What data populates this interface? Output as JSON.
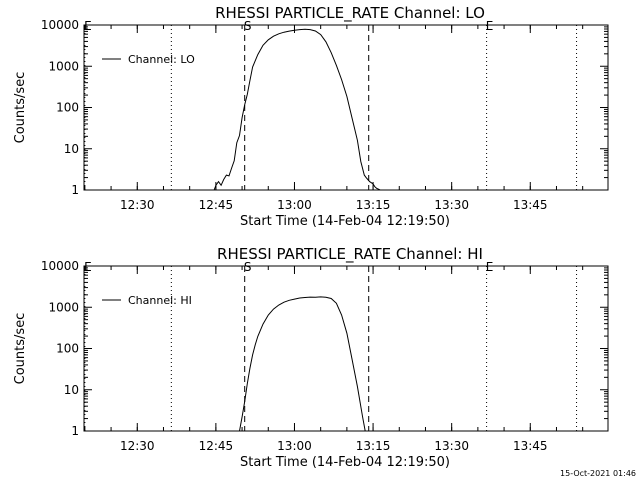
{
  "chart_data": [
    {
      "type": "line",
      "title": "RHESSI PARTICLE_RATE Channel: LO",
      "xlabel": "Start Time (14-Feb-04 12:19:50)",
      "ylabel": "Counts/sec",
      "y_scale": "log",
      "ylim": [
        1,
        10000
      ],
      "xlim": [
        "12:19:50",
        "13:59:50"
      ],
      "x_ticks": [
        "12:30",
        "12:45",
        "13:00",
        "13:15",
        "13:30",
        "13:45"
      ],
      "y_ticks": [
        "1",
        "10",
        "100",
        "1000",
        "10000"
      ],
      "legend_position": "top-left",
      "markers": {
        "start_label": "S",
        "end_label": "E",
        "start_time": "12:50:30",
        "end_time": "13:14:10",
        "dotted_lines": [
          "12:20:00",
          "12:36:30",
          "13:36:40",
          "13:53:50"
        ],
        "letter_E_near": [
          "12:20:00",
          "13:36:40"
        ]
      },
      "series": [
        {
          "name": "Channel: LO",
          "x": [
            "12:44:40",
            "12:45:00",
            "12:45:30",
            "12:46:00",
            "12:46:30",
            "12:47:00",
            "12:47:30",
            "12:48:00",
            "12:48:30",
            "12:49:00",
            "12:49:30",
            "12:50:00",
            "12:50:30",
            "12:51:00",
            "12:51:30",
            "12:52:00",
            "12:53:00",
            "12:54:00",
            "12:55:00",
            "12:56:00",
            "12:57:00",
            "12:58:00",
            "12:59:00",
            "13:00:00",
            "13:01:00",
            "13:02:00",
            "13:03:00",
            "13:04:00",
            "13:05:00",
            "13:06:00",
            "13:07:00",
            "13:08:00",
            "13:09:00",
            "13:10:00",
            "13:11:00",
            "13:12:00",
            "13:12:40",
            "13:13:20",
            "13:13:40",
            "13:14:00",
            "13:14:20",
            "13:14:40",
            "13:15:00",
            "13:15:20",
            "13:15:40",
            "13:16:00",
            "13:16:20"
          ],
          "y": [
            1.0,
            1.3,
            1.6,
            1.3,
            1.8,
            2.3,
            2.2,
            3.4,
            5.1,
            14,
            21,
            57,
            117,
            208,
            447,
            960,
            1912,
            3218,
            4387,
            5346,
            6115,
            6685,
            7107,
            7439,
            7750,
            7863,
            7728,
            7154,
            5851,
            3917,
            2128,
            1049,
            474,
            185,
            55,
            16,
            4.9,
            2.3,
            2.0,
            1.8,
            1.6,
            1.5,
            1.4,
            1.2,
            1.1,
            1.05,
            1.0
          ]
        }
      ]
    },
    {
      "type": "line",
      "title": "RHESSI PARTICLE_RATE Channel: HI",
      "xlabel": "Start Time (14-Feb-04 12:19:50)",
      "ylabel": "Counts/sec",
      "y_scale": "log",
      "ylim": [
        1,
        10000
      ],
      "xlim": [
        "12:19:50",
        "13:59:50"
      ],
      "x_ticks": [
        "12:30",
        "12:45",
        "13:00",
        "13:15",
        "13:30",
        "13:45"
      ],
      "y_ticks": [
        "1",
        "10",
        "100",
        "1000",
        "10000"
      ],
      "legend_position": "top-left",
      "markers": {
        "start_label": "S",
        "end_label": "E",
        "start_time": "12:50:30",
        "end_time": "13:14:10",
        "dotted_lines": [
          "12:20:00",
          "12:36:30",
          "13:36:40",
          "13:53:50"
        ],
        "letter_E_near": [
          "12:20:00",
          "13:36:40"
        ]
      },
      "series": [
        {
          "name": "Channel: HI",
          "x": [
            "12:49:30",
            "12:50:00",
            "12:50:30",
            "12:51:00",
            "12:51:30",
            "12:52:00",
            "12:52:30",
            "12:53:00",
            "12:54:00",
            "12:55:00",
            "12:56:00",
            "12:57:00",
            "12:58:00",
            "12:59:00",
            "13:00:00",
            "13:01:00",
            "13:02:00",
            "13:03:00",
            "13:04:00",
            "13:05:00",
            "13:06:00",
            "13:07:00",
            "13:08:00",
            "13:09:00",
            "13:10:00",
            "13:11:00",
            "13:12:00",
            "13:13:00",
            "13:13:30"
          ],
          "y": [
            1.0,
            2.2,
            5.2,
            14,
            33,
            70,
            122,
            196,
            390,
            648,
            901,
            1136,
            1324,
            1472,
            1578,
            1675,
            1720,
            1760,
            1750,
            1785,
            1745,
            1634,
            1249,
            648,
            234,
            54,
            12,
            2.2,
            1.0
          ]
        }
      ]
    }
  ],
  "footer": {
    "timestamp": "15-Oct-2021 01:46"
  }
}
